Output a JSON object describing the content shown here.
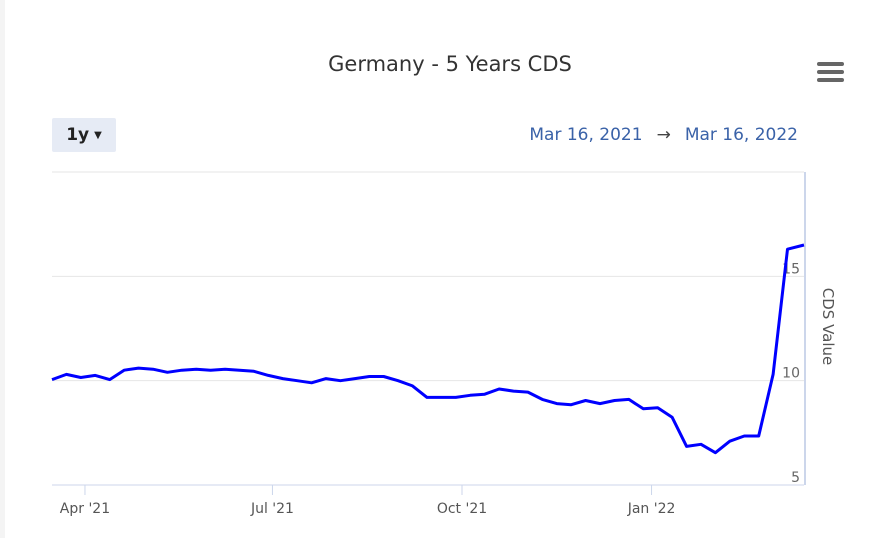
{
  "header": {
    "range_selector": "1y",
    "date_from": "Mar 16, 2021",
    "arrow": "→",
    "date_to": "Mar 16, 2022",
    "menu_icon": "hamburger-menu-icon"
  },
  "chart_data": {
    "type": "line",
    "title": "Germany - 5 Years CDS",
    "ylabel": "CDS Value",
    "xlabel": "",
    "ylim": [
      5,
      20
    ],
    "yticks": [
      5,
      10,
      15
    ],
    "x_range": [
      "2021-03-16",
      "2022-03-16"
    ],
    "xticks": [
      {
        "label": "Apr '21",
        "date": "2021-04-01"
      },
      {
        "label": "Jul '21",
        "date": "2021-07-01"
      },
      {
        "label": "Oct '21",
        "date": "2021-10-01"
      },
      {
        "label": "Jan '22",
        "date": "2022-01-01"
      }
    ],
    "grid": true,
    "series": [
      {
        "name": "Germany 5Y CDS",
        "color": "#0000ff",
        "start_date": "2021-03-16",
        "interval_days": 7,
        "values": [
          10.05,
          10.3,
          10.15,
          10.25,
          10.05,
          10.5,
          10.6,
          10.55,
          10.4,
          10.5,
          10.55,
          10.5,
          10.55,
          10.5,
          10.45,
          10.25,
          10.1,
          10.0,
          9.9,
          10.1,
          10.0,
          10.1,
          10.2,
          10.2,
          10.0,
          9.75,
          9.2,
          9.2,
          9.2,
          9.3,
          9.35,
          9.6,
          9.5,
          9.45,
          9.1,
          8.9,
          8.85,
          9.05,
          8.9,
          9.05,
          9.1,
          8.65,
          8.7,
          8.25,
          6.85,
          6.95,
          6.55,
          7.1,
          7.35,
          7.35,
          10.3,
          16.3,
          16.5
        ]
      }
    ]
  }
}
